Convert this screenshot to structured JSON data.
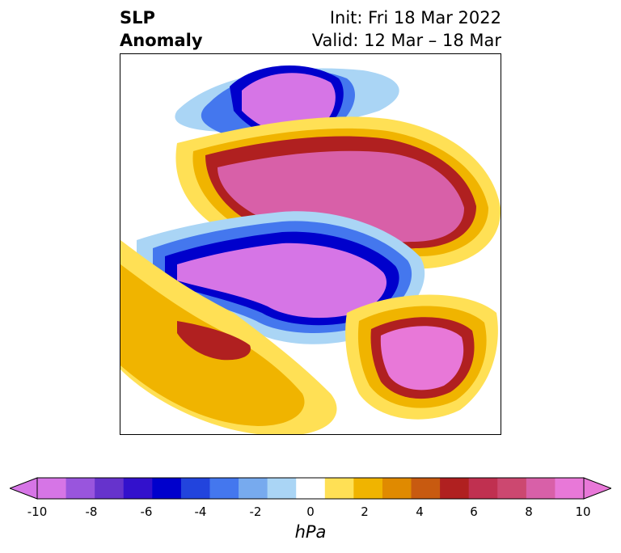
{
  "title": {
    "left_lines": [
      "SLP",
      "Anomaly"
    ],
    "right_lines": [
      "Init: Fri 18 Mar 2022",
      "Valid: 12 Mar – 18 Mar"
    ]
  },
  "colorbar": {
    "label": "hPa",
    "ticks": [
      "-10",
      "-8",
      "-6",
      "-4",
      "-2",
      "0",
      "2",
      "4",
      "6",
      "8",
      "10"
    ],
    "colors": [
      "#d675e6",
      "#9955dd",
      "#6633cc",
      "#3311cc",
      "#0000cc",
      "#2244dd",
      "#4477ee",
      "#77aaee",
      "#aad5f5",
      "#ffffff",
      "#ffe055",
      "#f0b400",
      "#e08a00",
      "#c85a10",
      "#b02020",
      "#c03050",
      "#cc4870",
      "#d860a8",
      "#e878d8"
    ]
  },
  "map": {
    "projection": "north-polar-stereographic",
    "field": "sea-level-pressure-anomaly"
  }
}
